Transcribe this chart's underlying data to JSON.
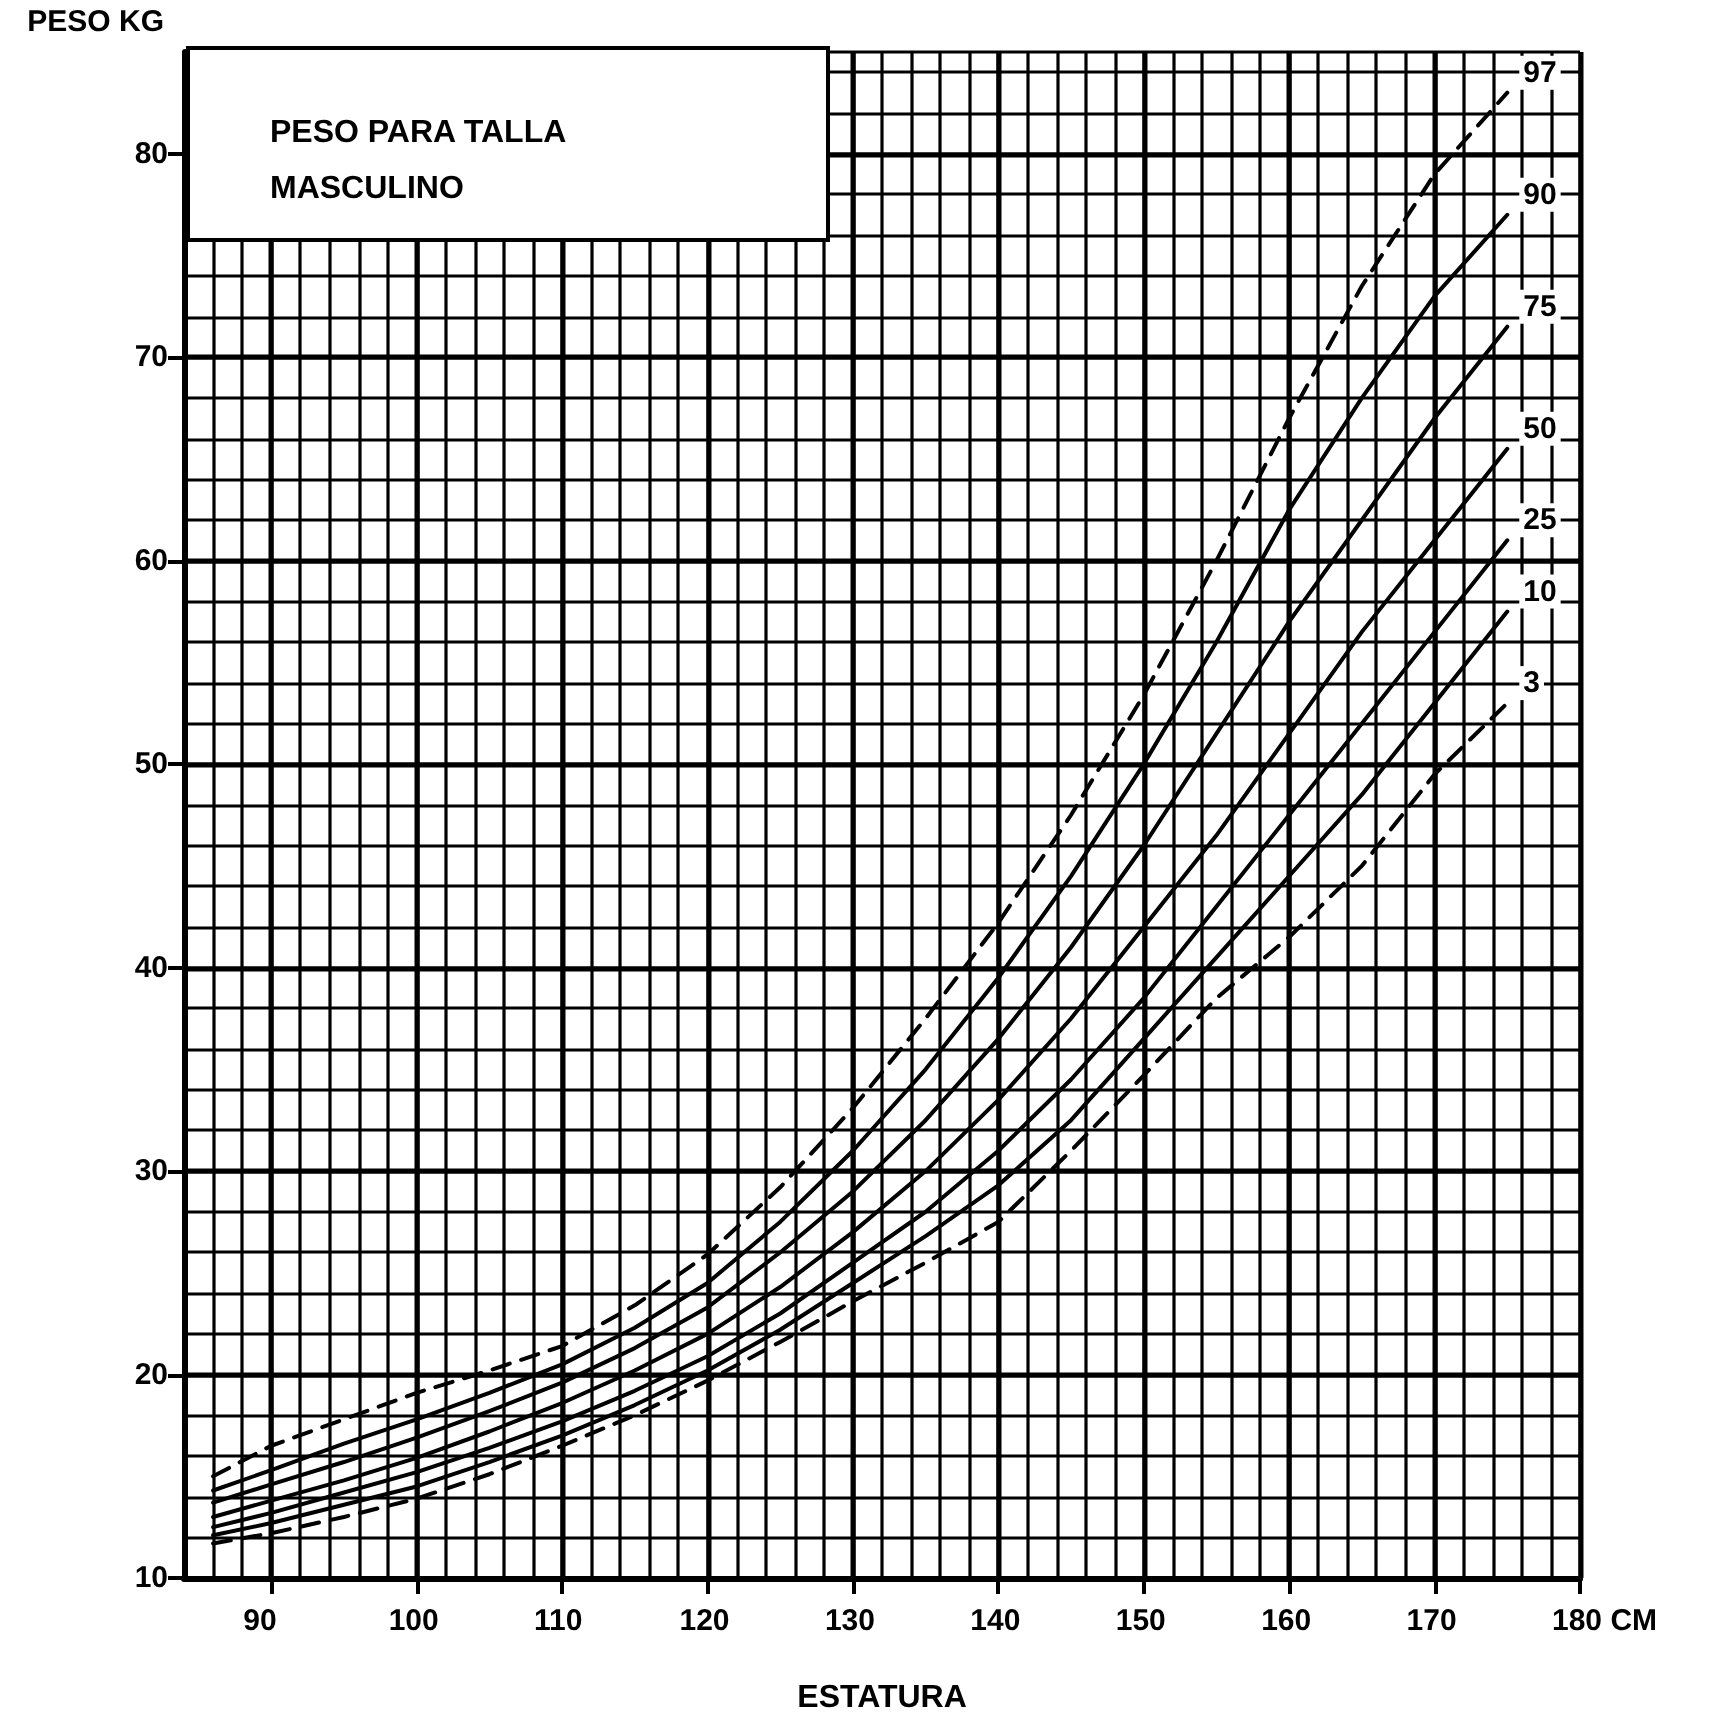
{
  "chart_data": {
    "type": "line",
    "title": "PESO PARA TALLA MASCULINO",
    "xlabel": "ESTATURA",
    "ylabel": "PESO KG",
    "x": [
      86,
      90,
      95,
      100,
      105,
      110,
      115,
      120,
      125,
      130,
      135,
      140,
      145,
      150,
      155,
      160,
      165,
      170,
      175
    ],
    "series": [
      {
        "name": "97",
        "color": "#000000",
        "line_style": "dashed",
        "values": [
          15.0,
          16.5,
          17.8,
          19.1,
          20.2,
          21.4,
          23.4,
          25.9,
          29.2,
          33.1,
          37.5,
          42.2,
          47.5,
          53.4,
          60,
          67,
          73.5,
          79,
          83
        ]
      },
      {
        "name": "90",
        "color": "#000000",
        "line_style": "solid",
        "values": [
          14.3,
          15.3,
          16.6,
          17.8,
          19.1,
          20.5,
          22.3,
          24.5,
          27.5,
          31,
          35,
          39.5,
          44.5,
          50,
          56,
          62.5,
          68,
          73,
          77
        ]
      },
      {
        "name": "75",
        "color": "#000000",
        "line_style": "solid",
        "values": [
          13.7,
          14.6,
          15.7,
          16.9,
          18.2,
          19.6,
          21.3,
          23.3,
          26,
          29,
          32.5,
          36.5,
          41,
          46,
          51.5,
          57,
          62,
          67,
          71.5
        ]
      },
      {
        "name": "50",
        "color": "#000000",
        "line_style": "solid",
        "values": [
          13.0,
          13.8,
          14.8,
          15.9,
          17.2,
          18.6,
          20.2,
          22.0,
          24.3,
          27.0,
          30,
          33.5,
          37.5,
          42,
          46.5,
          51.5,
          56.5,
          61,
          65.5
        ]
      },
      {
        "name": "25",
        "color": "#000000",
        "line_style": "solid",
        "values": [
          12.5,
          13.2,
          14.2,
          15.2,
          16.4,
          17.7,
          19.2,
          20.9,
          23,
          25.5,
          28,
          31,
          34.5,
          38.5,
          43,
          47.5,
          52,
          56.5,
          61
        ]
      },
      {
        "name": "10",
        "color": "#000000",
        "line_style": "solid",
        "values": [
          12.1,
          12.7,
          13.6,
          14.5,
          15.7,
          17.0,
          18.5,
          20.2,
          22.2,
          24.5,
          26.8,
          29.3,
          32.5,
          36.5,
          40.5,
          44.5,
          48.5,
          53,
          57.5
        ]
      },
      {
        "name": "3",
        "color": "#000000",
        "line_style": "dashed",
        "values": [
          11.7,
          12.2,
          13.0,
          13.9,
          15.1,
          16.5,
          18.0,
          19.7,
          21.6,
          23.6,
          25.5,
          27.5,
          31,
          34.7,
          38.5,
          41.5,
          45,
          49.5,
          53
        ]
      }
    ],
    "xlim": [
      84,
      180
    ],
    "xticks": [
      90,
      100,
      110,
      120,
      130,
      140,
      150,
      160,
      170,
      {
        "value": 180,
        "label": "180 CM"
      }
    ],
    "ylim": [
      10,
      85
    ],
    "yticks": [
      10,
      20,
      30,
      40,
      50,
      60,
      70,
      80
    ],
    "grid": true,
    "legend": false,
    "marker": "none"
  }
}
